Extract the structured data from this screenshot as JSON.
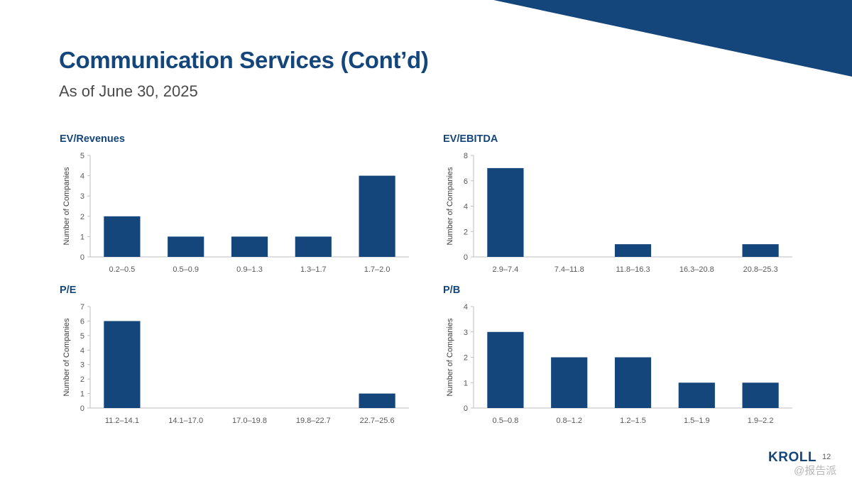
{
  "header": {
    "title": "Communication Services (Cont’d)",
    "subtitle": "As of June 30, 2025"
  },
  "footer": {
    "logo_text": "KROLL",
    "page_number": "12",
    "watermark": "@报告派"
  },
  "colors": {
    "brand": "#14467c",
    "bar": "#14467c",
    "axis": "#bfbfbf",
    "text_muted": "#595959"
  },
  "chart_data": [
    {
      "type": "bar",
      "title": "EV/Revenues",
      "xlabel": "",
      "ylabel": "Number of Companies",
      "categories": [
        "0.2–0.5",
        "0.5–0.9",
        "0.9–1.3",
        "1.3–1.7",
        "1.7–2.0"
      ],
      "values": [
        2,
        1,
        1,
        1,
        4
      ],
      "ylim": [
        0,
        5
      ],
      "yticks": [
        0,
        1,
        2,
        3,
        4,
        5
      ],
      "grid": false,
      "legend": "none"
    },
    {
      "type": "bar",
      "title": "EV/EBITDA",
      "xlabel": "",
      "ylabel": "Number of Companies",
      "categories": [
        "2.9–7.4",
        "7.4–11.8",
        "11.8–16.3",
        "16.3–20.8",
        "20.8–25.3"
      ],
      "values": [
        7,
        0,
        1,
        0,
        1
      ],
      "ylim": [
        0,
        8
      ],
      "yticks": [
        0,
        2,
        4,
        6,
        8
      ],
      "grid": false,
      "legend": "none"
    },
    {
      "type": "bar",
      "title": "P/E",
      "xlabel": "",
      "ylabel": "Number of Companies",
      "categories": [
        "11.2–14.1",
        "14.1–17.0",
        "17.0–19.8",
        "19.8–22.7",
        "22.7–25.6"
      ],
      "values": [
        6,
        0,
        0,
        0,
        1
      ],
      "ylim": [
        0,
        7
      ],
      "yticks": [
        0,
        1,
        2,
        3,
        4,
        5,
        6,
        7
      ],
      "grid": false,
      "legend": "none"
    },
    {
      "type": "bar",
      "title": "P/B",
      "xlabel": "",
      "ylabel": "Number of Companies",
      "categories": [
        "0.5–0.8",
        "0.8–1.2",
        "1.2–1.5",
        "1.5–1.9",
        "1.9–2.2"
      ],
      "values": [
        3,
        2,
        2,
        1,
        1
      ],
      "ylim": [
        0,
        4
      ],
      "yticks": [
        0,
        1,
        2,
        3,
        4
      ],
      "grid": false,
      "legend": "none"
    }
  ]
}
